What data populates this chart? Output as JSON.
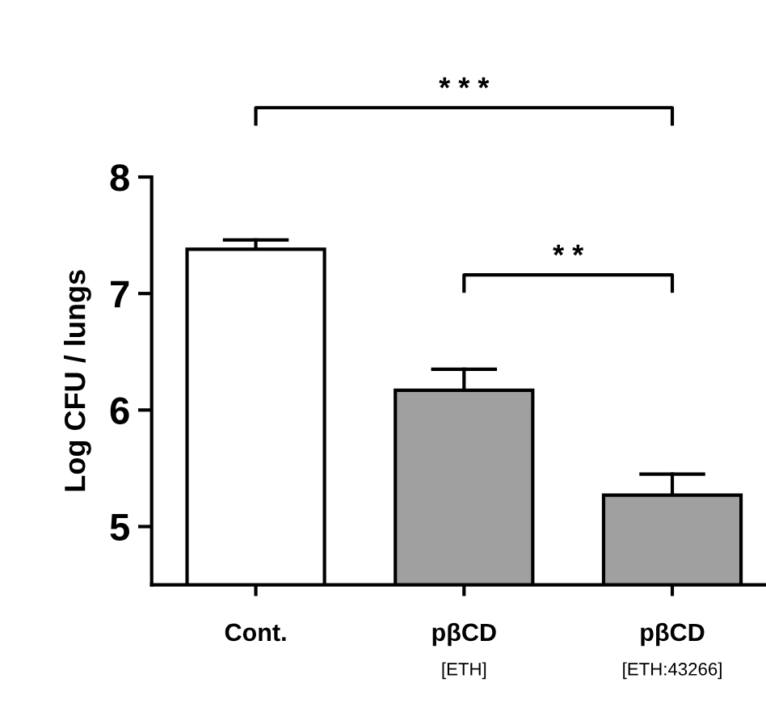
{
  "chart_data": {
    "type": "bar",
    "ylabel": "Log CFU / lungs",
    "categories": [
      "Cont.",
      "pβCD\n[ETH]",
      "pβCD\n[ETH:43266]"
    ],
    "values": [
      7.38,
      6.17,
      5.27
    ],
    "errors": [
      0.08,
      0.18,
      0.18
    ],
    "colors": [
      "#ffffff",
      "#a0a0a0",
      "#a0a0a0"
    ],
    "ylim": [
      4.5,
      8
    ],
    "yticks": [
      5,
      6,
      7,
      8
    ],
    "grid": false,
    "annotations": [
      "* * *",
      "* *"
    ]
  }
}
